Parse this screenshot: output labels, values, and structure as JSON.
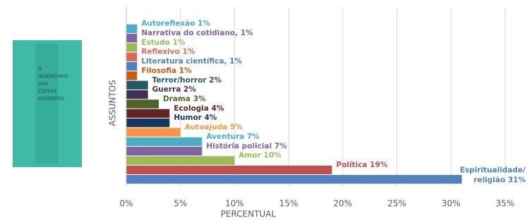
{
  "book_cover": {
    "lines": [
      "O",
      "INVENTÁRIO",
      "DAS",
      "COISAS",
      "AUSENTES"
    ]
  },
  "chart_data": {
    "type": "barh",
    "xlabel": "PERCENTUAL",
    "ylabel": "ASSUNTOS",
    "categories": [
      "Autoreflexão",
      "Narrativa do cotidiano,",
      "Estudo",
      "Reflexivo",
      "Literatura científica,",
      "Filosofia",
      "Terror/horror",
      "Guerra",
      "Drama",
      "Ecologia",
      "Humor",
      "Autoajuda",
      "Aventura",
      "História policial",
      "Amor",
      "Política",
      "Espiritualidade/religião"
    ],
    "values": [
      1,
      1,
      1,
      1,
      1,
      1,
      2,
      2,
      3,
      4,
      4,
      5,
      7,
      7,
      10,
      19,
      31
    ],
    "value_labels": [
      "1%",
      "1%",
      "1%",
      "1%",
      "1%",
      "1%",
      "2%",
      "2%",
      "3%",
      "4%",
      "4%",
      "5%",
      "7%",
      "7%",
      "10%",
      "19%",
      "31%"
    ],
    "colors": [
      "#4bacc6",
      "#8064a2",
      "#9bbb59",
      "#d9695f",
      "#4f81bd",
      "#c55a11",
      "#215967",
      "#3f3151",
      "#4f6228",
      "#632523",
      "#17375e",
      "#f79646",
      "#4bacc6",
      "#8064a2",
      "#9bbb59",
      "#c0504d",
      "#4f81bd"
    ],
    "xlim": [
      0,
      35
    ],
    "xticks": [
      {
        "value": 0,
        "label": "0%"
      },
      {
        "value": 5,
        "label": "5%"
      },
      {
        "value": 10,
        "label": "10%"
      },
      {
        "value": 15,
        "label": "15%"
      },
      {
        "value": 20,
        "label": "20%"
      },
      {
        "value": 25,
        "label": "25%"
      },
      {
        "value": 30,
        "label": "30%"
      },
      {
        "value": 35,
        "label": "35%"
      }
    ],
    "grid": true
  }
}
